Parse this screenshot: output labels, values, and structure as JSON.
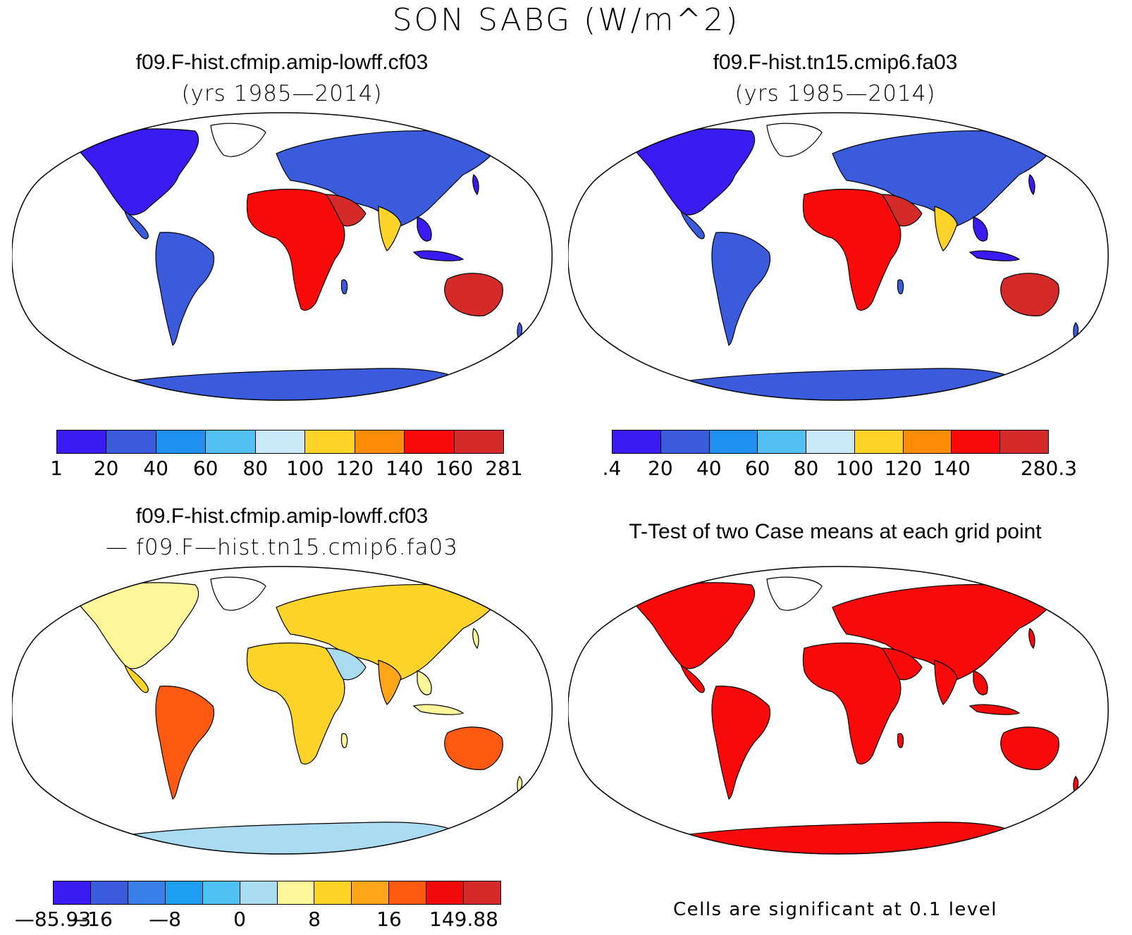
{
  "main_title": "SON SABG (W/m^2)",
  "panels": [
    {
      "title": "f09.F-hist.cfmip.amip-lowff.cf03",
      "subtitle": "(yrs 1985—2014)",
      "colorbar": {
        "colors": [
          "#3a1cf2",
          "#3a5bdc",
          "#1f8ff0",
          "#52c0f2",
          "#c9e8f8",
          "#ffd42a",
          "#ff8c08",
          "#f80a0a",
          "#d52a2a"
        ],
        "ticks": [
          "1",
          "20",
          "40",
          "60",
          "80",
          "100",
          "120",
          "140",
          "160",
          "281"
        ]
      }
    },
    {
      "title": "f09.F-hist.tn15.cmip6.fa03",
      "subtitle": "(yrs 1985—2014)",
      "colorbar": {
        "colors": [
          "#3a1cf2",
          "#3a5bdc",
          "#1f8ff0",
          "#52c0f2",
          "#c9e8f8",
          "#ffd42a",
          "#ff8c08",
          "#f80a0a",
          "#d52a2a"
        ],
        "ticks": [
          ".4",
          "20",
          "40",
          "60",
          "80",
          "100",
          "120",
          "140",
          "",
          "280.3"
        ]
      }
    },
    {
      "title": "f09.F-hist.cfmip.amip-lowff.cf03",
      "subtitle": "— f09.F—hist.tn15.cmip6.fa03",
      "colorbar": {
        "colors": [
          "#3a1cf2",
          "#3a5bdc",
          "#3a7ee8",
          "#1f9ff2",
          "#4fc4f4",
          "#a9dbf3",
          "#fff79a",
          "#ffd42a",
          "#ffa51a",
          "#ff5a12",
          "#f00a0a",
          "#d52a2a"
        ],
        "ticks": [
          "—85.93",
          "—16",
          "",
          "—8",
          "",
          "0",
          "",
          "8",
          "",
          "16",
          "",
          "149.88"
        ]
      }
    },
    {
      "title": "T-Test of two Case means at each grid point",
      "subtitle": "",
      "footnote": "Cells are significant at 0.1 level"
    }
  ]
}
